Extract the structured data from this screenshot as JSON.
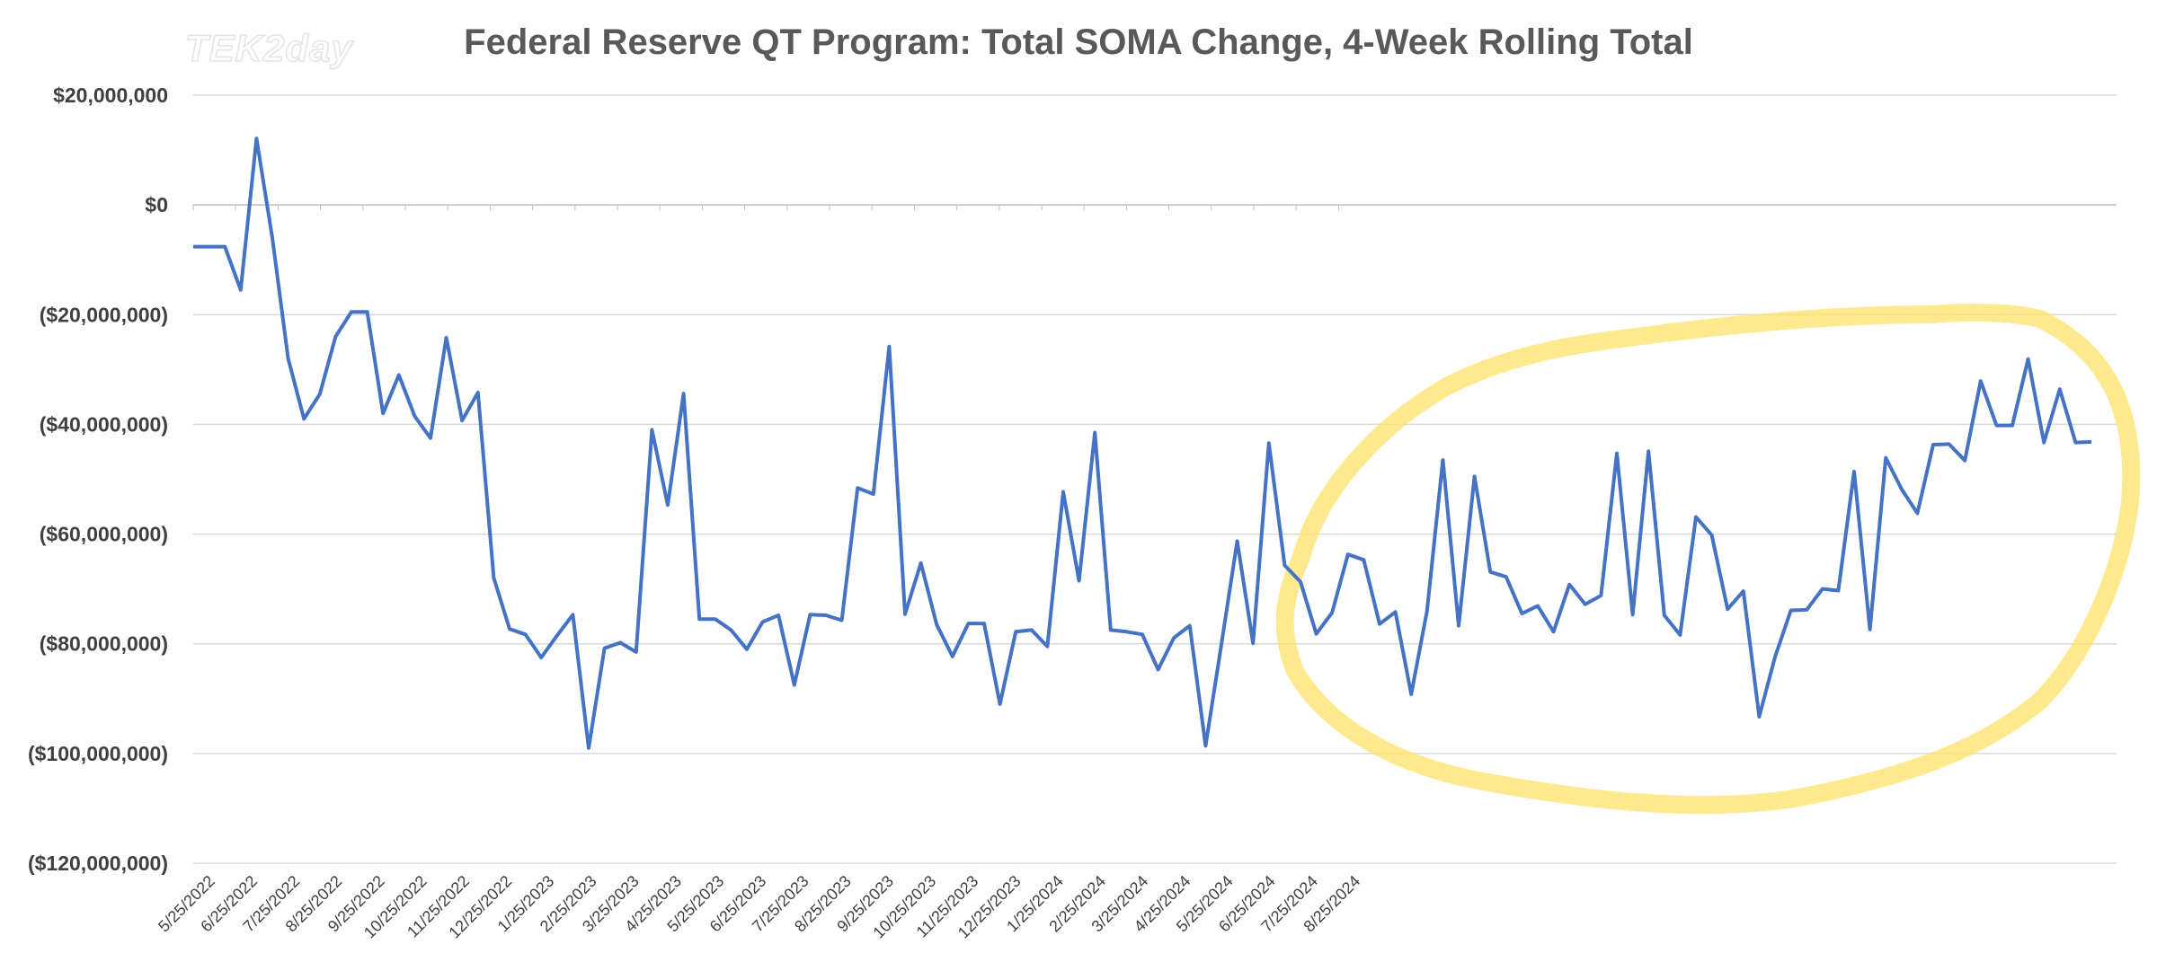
{
  "chart_data": {
    "type": "line",
    "title": "Federal Reserve QT Program: Total SOMA Change, 4-Week Rolling Total",
    "watermark": "TEK2day",
    "xlabel": "",
    "ylabel": "",
    "ylim": [
      -120000000,
      20000000
    ],
    "y_ticks": [
      20000000,
      0,
      -20000000,
      -40000000,
      -60000000,
      -80000000,
      -100000000,
      -120000000
    ],
    "y_tick_labels": [
      "$20,000,000",
      "$0",
      "($20,000,000)",
      "($40,000,000)",
      "($60,000,000)",
      "($80,000,000)",
      "($100,000,000)",
      "($120,000,000)"
    ],
    "x_tick_labels": [
      "5/25/2022",
      "6/25/2022",
      "7/25/2022",
      "8/25/2022",
      "9/25/2022",
      "10/25/2022",
      "11/25/2022",
      "12/25/2022",
      "1/25/2023",
      "2/25/2023",
      "3/25/2023",
      "4/25/2023",
      "5/25/2023",
      "6/25/2023",
      "7/25/2023",
      "8/25/2023",
      "9/25/2023",
      "10/25/2023",
      "11/25/2023",
      "12/25/2023",
      "1/25/2024",
      "2/25/2024",
      "3/25/2024",
      "4/25/2024",
      "5/25/2024",
      "6/25/2024",
      "7/25/2024",
      "8/25/2024"
    ],
    "grid": true,
    "legend": "none",
    "annotation": "yellow hand-drawn ellipse highlighting Sep 2023 - Sep 2024",
    "colors": {
      "line": "#4472c4",
      "highlight": "#ffe169",
      "grid": "#d9d9d9",
      "text": "#404040",
      "title": "#595959"
    },
    "series": [
      {
        "values": [
          -7600000,
          -7600000,
          -7600000,
          -15500000,
          12100000,
          -6000000,
          -28000000,
          -39000000,
          -34500000,
          -24000000,
          -19500000,
          -19500000,
          -38000000,
          -31000000,
          -38500000,
          -42500000,
          -24200000,
          -39300000,
          -34200000,
          -68000000,
          -77300000,
          -78300000,
          -82500000,
          -78500000,
          -74700000,
          -99000000,
          -80800000,
          -79800000,
          -81500000,
          -41000000,
          -54700000,
          -34400000,
          -75500000,
          -75500000,
          -77500000,
          -81000000,
          -76000000,
          -74800000,
          -87500000,
          -74700000,
          -74800000,
          -75700000,
          -51600000,
          -52700000,
          -25800000,
          -74600000,
          -65300000,
          -76500000,
          -82300000,
          -76300000,
          -76300000,
          -91000000,
          -77800000,
          -77500000,
          -80500000,
          -52300000,
          -68500000,
          -41500000,
          -77500000,
          -77800000,
          -78300000,
          -84700000,
          -78900000,
          -76700000,
          -98600000,
          -80100000,
          -61300000,
          -79900000,
          -43400000,
          -65700000,
          -68700000,
          -78200000,
          -74300000,
          -63700000,
          -64700000,
          -76400000,
          -74200000,
          -89200000,
          -74000000,
          -46500000,
          -76700000,
          -49500000,
          -66900000,
          -67800000,
          -74500000,
          -73100000,
          -77800000,
          -69200000,
          -72800000,
          -71200000,
          -45300000,
          -74700000,
          -44900000,
          -74800000,
          -78400000,
          -56900000,
          -60200000,
          -73700000,
          -70400000,
          -93300000,
          -82400000,
          -73900000,
          -73800000,
          -70000000,
          -70300000,
          -48600000,
          -77400000,
          -46100000,
          -51800000,
          -56200000,
          -43700000,
          -43600000,
          -46600000,
          -32100000,
          -40200000,
          -40200000,
          -28100000,
          -43300000,
          -33600000,
          -43300000,
          -43200000
        ]
      }
    ]
  }
}
